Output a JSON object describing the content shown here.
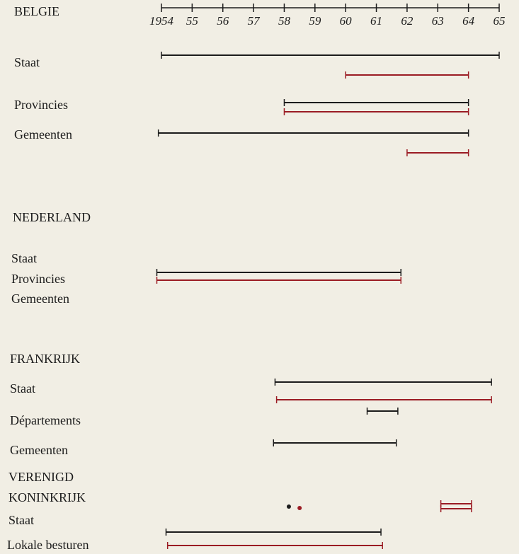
{
  "chart_data": {
    "type": "timeline",
    "xlim": [
      1954,
      1965
    ],
    "xticks": [
      1954,
      {
        "value": 1955,
        "label": "55"
      },
      {
        "value": 1956,
        "label": "56"
      },
      {
        "value": 1957,
        "label": "57"
      },
      {
        "value": 1958,
        "label": "58"
      },
      {
        "value": 1959,
        "label": "59"
      },
      {
        "value": 1960,
        "label": "60"
      },
      {
        "value": 1961,
        "label": "61"
      },
      {
        "value": 1962,
        "label": "62"
      },
      {
        "value": 1963,
        "label": "63"
      },
      {
        "value": 1964,
        "label": "64"
      },
      {
        "value": 1965,
        "label": "65"
      }
    ],
    "labels": [
      "BELGIE",
      "Staat",
      "Provincies",
      "Gemeenten",
      "NEDERLAND",
      "Staat",
      "Provincies",
      "Gemeenten",
      "FRANKRIJK",
      "Staat",
      "Départements",
      "Gemeenten",
      "VERENIGD",
      "KONINKRIJK",
      "Staat",
      "Lokale besturen"
    ],
    "bars": [
      {
        "color": "#1c1c1c",
        "start": 1954,
        "end": 1965
      },
      {
        "color": "#9b1c24",
        "start": 1960,
        "end": 1964
      },
      {
        "color": "#1c1c1c",
        "start": 1958,
        "end": 1964
      },
      {
        "color": "#9b1c24",
        "start": 1958,
        "end": 1964
      },
      {
        "color": "#1c1c1c",
        "start": 1953.9,
        "end": 1964
      },
      {
        "color": "#9b1c24",
        "start": 1962,
        "end": 1964
      },
      {
        "color": "#1c1c1c",
        "start": 1953.85,
        "end": 1961.8
      },
      {
        "color": "#9b1c24",
        "start": 1953.85,
        "end": 1961.8
      },
      {
        "color": "#1c1c1c",
        "start": 1957.7,
        "end": 1964.75
      },
      {
        "color": "#9b1c24",
        "start": 1957.75,
        "end": 1964.75
      },
      {
        "color": "#1c1c1c",
        "start": 1960.7,
        "end": 1961.7
      },
      {
        "color": "#1c1c1c",
        "start": 1957.65,
        "end": 1961.65
      },
      {
        "color": "#9b1c24",
        "start": 1963.1,
        "end": 1964.1
      },
      {
        "color": "#9b1c24",
        "start": 1963.1,
        "end": 1964.1
      },
      {
        "color": "#1c1c1c",
        "start": 1954.15,
        "end": 1961.15
      },
      {
        "color": "#9b1c24",
        "start": 1954.2,
        "end": 1961.2
      }
    ],
    "points": [
      {
        "color": "#1c1c1c",
        "x": 1958.15
      },
      {
        "color": "#9b1c24",
        "x": 1958.5
      }
    ]
  }
}
